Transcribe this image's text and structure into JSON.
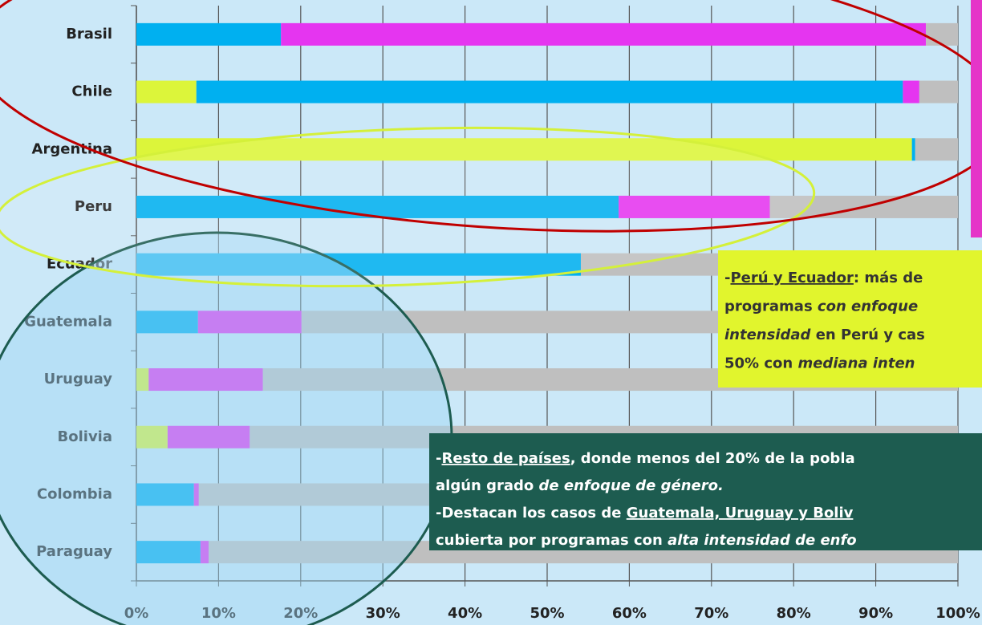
{
  "chart_data": {
    "type": "stacked-barh",
    "categories": [
      "Brasil",
      "Chile",
      "Argentina",
      "Peru",
      "Ecuador",
      "Guatemala",
      "Uruguay",
      "Bolivia",
      "Colombia",
      "Paraguay"
    ],
    "series": [
      {
        "color": "#dcf53a",
        "values": [
          0,
          7.3,
          94.4,
          0,
          0,
          0,
          1.5,
          3.8,
          0,
          0
        ]
      },
      {
        "color": "#00b0f0",
        "values": [
          17.6,
          86.0,
          0.4,
          58.7,
          54.1,
          7.5,
          0,
          0,
          7.0,
          7.8
        ]
      },
      {
        "color": "#e535f0",
        "values": [
          78.5,
          2.0,
          0,
          18.4,
          0,
          12.6,
          13.9,
          10.0,
          0.6,
          1.0
        ]
      },
      {
        "color": "#bfbfbf",
        "values": [
          3.9,
          4.7,
          5.2,
          22.9,
          45.9,
          79.9,
          84.6,
          86.2,
          92.4,
          91.2
        ]
      }
    ],
    "xlim": [
      0,
      100
    ],
    "xticks": [
      {
        "value": 0,
        "label": "0%"
      },
      {
        "value": 10,
        "label": "10%"
      },
      {
        "value": 20,
        "label": "20%"
      },
      {
        "value": 30,
        "label": "30%"
      },
      {
        "value": 40,
        "label": "40%"
      },
      {
        "value": 50,
        "label": "50%"
      },
      {
        "value": 60,
        "label": "60%"
      },
      {
        "value": 70,
        "label": "70%"
      },
      {
        "value": 80,
        "label": "80%"
      },
      {
        "value": 90,
        "label": "90%"
      },
      {
        "value": 100,
        "label": "100%"
      }
    ],
    "grid": true,
    "annotations": [
      {
        "lines": [
          [
            {
              "text": "-"
            },
            {
              "text": "Perú y Ecuador",
              "underline": true
            },
            {
              "text": ": más de"
            }
          ],
          [
            {
              "text": "programas "
            },
            {
              "text": "con enfoque",
              "italic": true
            }
          ],
          [
            {
              "text": "intensidad",
              "italic": true
            },
            {
              "text": " en Perú y cas"
            }
          ],
          [
            {
              "text": "50% con "
            },
            {
              "text": "mediana inten",
              "italic": true
            }
          ]
        ]
      },
      {
        "lines": [
          [
            {
              "text": "-"
            },
            {
              "text": "Resto de países",
              "underline": true
            },
            {
              "text": ", donde menos del 20% de la pobla"
            }
          ],
          [
            {
              "text": "algún grado "
            },
            {
              "text": "de enfoque de género.",
              "italic": true
            }
          ],
          [
            {
              "text": "-Destacan los casos de "
            },
            {
              "text": "Guatemala, Uruguay y Boliv",
              "underline": true
            }
          ],
          [
            {
              "text": "cubierta por programas con "
            },
            {
              "text": "alta intensidad de enfo",
              "italic": true
            }
          ]
        ]
      }
    ]
  }
}
